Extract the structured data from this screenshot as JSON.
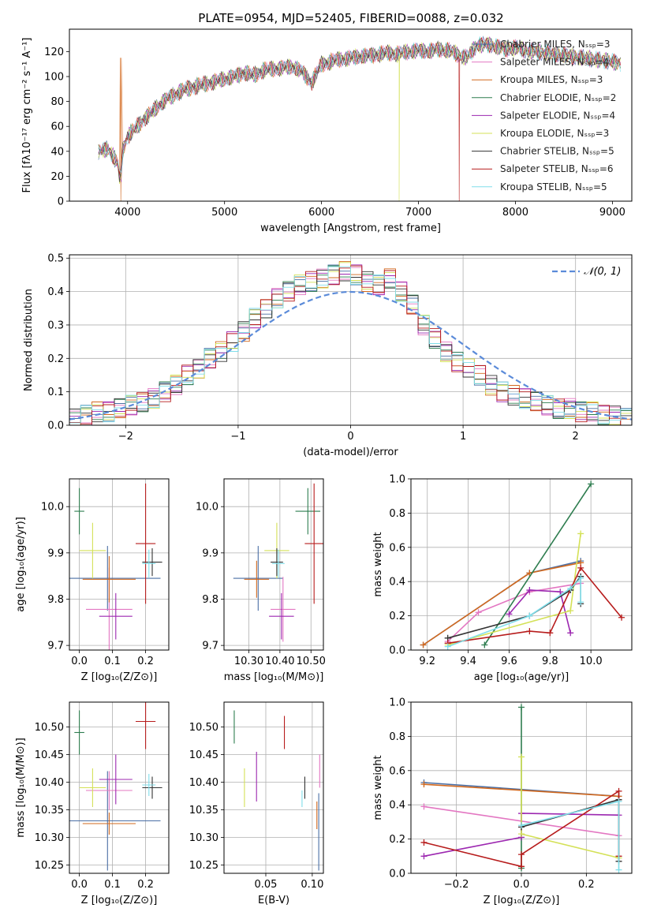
{
  "figure": {
    "title": "PLATE=0954, MJD=52405, FIBERID=0088, z=0.032"
  },
  "legend": [
    {
      "label": "Chabrier MILES, Nₛₛₚ=3",
      "color": "#4a6fa5"
    },
    {
      "label": "Salpeter MILES, Nₛₛₚ=4",
      "color": "#e377c2"
    },
    {
      "label": "Kroupa MILES, Nₛₛₚ=3",
      "color": "#d2691e"
    },
    {
      "label": "Chabrier ELODIE, Nₛₛₚ=2",
      "color": "#2e7d4f"
    },
    {
      "label": "Salpeter ELODIE, Nₛₛₚ=4",
      "color": "#9c27b0"
    },
    {
      "label": "Kroupa ELODIE, Nₛₛₚ=3",
      "color": "#d4e157"
    },
    {
      "label": "Chabrier STELIB, Nₛₛₚ=5",
      "color": "#333333"
    },
    {
      "label": "Salpeter STELIB, Nₛₛₚ=6",
      "color": "#b71c1c"
    },
    {
      "label": "Kroupa STELIB, Nₛₛₚ=5",
      "color": "#80deea"
    }
  ],
  "chart_data": [
    {
      "type": "line",
      "title": "PLATE=0954, MJD=52405, FIBERID=0088, z=0.032",
      "xlabel": "wavelength [Angstrom, rest frame]",
      "ylabel": "Flux [fλ10⁻¹⁷ erg cm⁻² s⁻¹ A⁻¹]",
      "xlim": [
        3400,
        9200
      ],
      "ylim": [
        0,
        138
      ],
      "xticks": [
        4000,
        5000,
        6000,
        7000,
        8000,
        9000
      ],
      "yticks": [
        0,
        20,
        40,
        60,
        80,
        100,
        120
      ],
      "grid": false,
      "legend_position": "top-right",
      "x": [
        3700,
        3800,
        3900,
        4000,
        4100,
        4200,
        4300,
        4400,
        4500,
        4600,
        4700,
        4800,
        4900,
        5000,
        5100,
        5200,
        5300,
        5400,
        5500,
        5600,
        5700,
        5800,
        5900,
        6000,
        6100,
        6200,
        6300,
        6400,
        6500,
        6600,
        6700,
        6800,
        6900,
        7000,
        7100,
        7200,
        7300,
        7400,
        7500,
        7600,
        7700,
        7800,
        7900,
        8000,
        8100,
        8200,
        8300,
        8400,
        8500,
        8600,
        8700,
        8800,
        8900,
        9000,
        9100
      ],
      "flux": [
        40,
        42,
        30,
        52,
        60,
        68,
        75,
        82,
        86,
        90,
        92,
        94,
        96,
        98,
        100,
        103,
        101,
        105,
        106,
        107,
        108,
        104,
        95,
        110,
        112,
        114,
        115,
        116,
        117,
        118,
        119,
        118,
        120,
        121,
        120,
        122,
        121,
        118,
        115,
        125,
        126,
        124,
        122,
        123,
        121,
        120,
        119,
        118,
        117,
        116,
        115,
        114,
        113,
        112,
        110
      ],
      "drops": [
        {
          "series": "Kroupa MILES, Nₛₛₚ=3",
          "x": 3930,
          "y": 0
        },
        {
          "series": "Kroupa ELODIE, Nₛₛₚ=3",
          "x": 6800,
          "y": 0
        },
        {
          "series": "Salpeter STELIB, Nₛₛₚ=6",
          "x": 7420,
          "y": 0
        }
      ]
    },
    {
      "type": "line",
      "xlabel": "(data-model)/error",
      "ylabel": "Normed distribution",
      "xlim": [
        -2.5,
        2.5
      ],
      "ylim": [
        0,
        0.51
      ],
      "xticks": [
        -2,
        -1,
        0,
        1,
        2
      ],
      "yticks": [
        0.0,
        0.1,
        0.2,
        0.3,
        0.4,
        0.5
      ],
      "grid": true,
      "legend": [
        {
          "label": "𝒩(0, 1)",
          "color": "#5b8bd9",
          "style": "dashed"
        }
      ],
      "legend_position": "top-right",
      "bin_edges": [
        -2.5,
        -2.4,
        -2.3,
        -2.2,
        -2.1,
        -2.0,
        -1.9,
        -1.8,
        -1.7,
        -1.6,
        -1.5,
        -1.4,
        -1.3,
        -1.2,
        -1.1,
        -1.0,
        -0.9,
        -0.8,
        -0.7,
        -0.6,
        -0.5,
        -0.4,
        -0.3,
        -0.2,
        -0.1,
        0.0,
        0.1,
        0.2,
        0.3,
        0.4,
        0.5,
        0.6,
        0.7,
        0.8,
        0.9,
        1.0,
        1.1,
        1.2,
        1.3,
        1.4,
        1.5,
        1.6,
        1.7,
        1.8,
        1.9,
        2.0,
        2.1,
        2.2,
        2.3,
        2.4,
        2.5
      ],
      "histogram": [
        0.02,
        0.03,
        0.04,
        0.04,
        0.05,
        0.06,
        0.07,
        0.08,
        0.1,
        0.12,
        0.15,
        0.17,
        0.2,
        0.22,
        0.25,
        0.28,
        0.32,
        0.35,
        0.38,
        0.4,
        0.42,
        0.43,
        0.44,
        0.45,
        0.46,
        0.45,
        0.43,
        0.42,
        0.44,
        0.4,
        0.36,
        0.3,
        0.26,
        0.22,
        0.19,
        0.17,
        0.15,
        0.12,
        0.1,
        0.09,
        0.08,
        0.07,
        0.06,
        0.05,
        0.05,
        0.04,
        0.04,
        0.03,
        0.03,
        0.02
      ],
      "normal_curve": {
        "mean": 0,
        "sd": 1
      }
    },
    {
      "type": "scatter",
      "xlabel": "Z [log₁₀(Z/Z⊙)]",
      "ylabel": "age  [log₁₀(age/yr)]",
      "xlim": [
        -0.03,
        0.27
      ],
      "ylim": [
        9.69,
        10.06
      ],
      "xticks": [
        0.0,
        0.1,
        0.2
      ],
      "yticks": [
        9.7,
        9.8,
        9.9,
        10.0
      ],
      "grid": true,
      "points": [
        {
          "series": "Chabrier MILES, Nₛₛₚ=3",
          "x": 0.085,
          "y": 9.845,
          "xerr": 0.16,
          "yerr": 0.07
        },
        {
          "series": "Salpeter MILES, Nₛₛₚ=4",
          "x": 0.09,
          "y": 9.778,
          "xerr": 0.07,
          "yerr": 0.09
        },
        {
          "series": "Kroupa MILES, Nₛₛₚ=3",
          "x": 0.09,
          "y": 9.843,
          "xerr": 0.08,
          "yerr": 0.05
        },
        {
          "series": "Chabrier ELODIE, Nₛₛₚ=2",
          "x": 0.0,
          "y": 9.99,
          "xerr": 0.015,
          "yerr": 0.05
        },
        {
          "series": "Salpeter ELODIE, Nₛₛₚ=4",
          "x": 0.11,
          "y": 9.763,
          "xerr": 0.05,
          "yerr": 0.05
        },
        {
          "series": "Kroupa ELODIE, Nₛₛₚ=3",
          "x": 0.04,
          "y": 9.905,
          "xerr": 0.04,
          "yerr": 0.06
        },
        {
          "series": "Chabrier STELIB, Nₛₛₚ=5",
          "x": 0.22,
          "y": 9.88,
          "xerr": 0.03,
          "yerr": 0.03
        },
        {
          "series": "Salpeter STELIB, Nₛₛₚ=6",
          "x": 0.2,
          "y": 9.92,
          "xerr": 0.03,
          "yerr": 0.13
        },
        {
          "series": "Kroupa STELIB, Nₛₛₚ=5",
          "x": 0.21,
          "y": 9.877,
          "xerr": 0.02,
          "yerr": 0.03
        }
      ]
    },
    {
      "type": "scatter",
      "xlabel": "mass [log₁₀(M/M⊙)]",
      "ylabel": "",
      "xlim": [
        10.22,
        10.54
      ],
      "ylim": [
        9.69,
        10.06
      ],
      "xticks": [
        10.3,
        10.4,
        10.5
      ],
      "yticks": [
        9.7,
        9.8,
        9.9,
        10.0
      ],
      "grid": true,
      "points": [
        {
          "series": "Chabrier MILES, Nₛₛₚ=3",
          "x": 10.33,
          "y": 9.845,
          "xerr": 0.08,
          "yerr": 0.07
        },
        {
          "series": "Salpeter MILES, Nₛₛₚ=4",
          "x": 10.41,
          "y": 9.778,
          "xerr": 0.04,
          "yerr": 0.07
        },
        {
          "series": "Kroupa MILES, Nₛₛₚ=3",
          "x": 10.325,
          "y": 9.843,
          "xerr": 0.04,
          "yerr": 0.04
        },
        {
          "series": "Chabrier ELODIE, Nₛₛₚ=2",
          "x": 10.49,
          "y": 9.99,
          "xerr": 0.04,
          "yerr": 0.05
        },
        {
          "series": "Salpeter ELODIE, Nₛₛₚ=4",
          "x": 10.405,
          "y": 9.763,
          "xerr": 0.04,
          "yerr": 0.05
        },
        {
          "series": "Kroupa ELODIE, Nₛₛₚ=3",
          "x": 10.39,
          "y": 9.905,
          "xerr": 0.04,
          "yerr": 0.06
        },
        {
          "series": "Chabrier STELIB, Nₛₛₚ=5",
          "x": 10.39,
          "y": 9.88,
          "xerr": 0.02,
          "yerr": 0.03
        },
        {
          "series": "Salpeter STELIB, Nₛₛₚ=6",
          "x": 10.51,
          "y": 9.92,
          "xerr": 0.03,
          "yerr": 0.13
        },
        {
          "series": "Kroupa STELIB, Nₛₛₚ=5",
          "x": 10.395,
          "y": 9.877,
          "xerr": 0.02,
          "yerr": 0.03
        }
      ]
    },
    {
      "type": "line",
      "xlabel": "age  [log₁₀(age/yr)]",
      "ylabel": "mass weight",
      "xlim": [
        9.12,
        10.2
      ],
      "ylim": [
        0.0,
        1.0
      ],
      "xticks": [
        9.2,
        9.4,
        9.6,
        9.8,
        10.0
      ],
      "yticks": [
        0.0,
        0.2,
        0.4,
        0.6,
        0.8,
        1.0
      ],
      "grid": true,
      "series": [
        {
          "name": "Chabrier MILES, Nₛₛₚ=3",
          "x": [
            9.18,
            9.7,
            9.95
          ],
          "y": [
            0.03,
            0.45,
            0.52
          ]
        },
        {
          "name": "Salpeter MILES, Nₛₛₚ=4",
          "x": [
            9.3,
            9.45,
            9.7,
            9.95
          ],
          "y": [
            0.05,
            0.22,
            0.34,
            0.39
          ]
        },
        {
          "name": "Kroupa MILES, Nₛₛₚ=3",
          "x": [
            9.18,
            9.7,
            9.95
          ],
          "y": [
            0.03,
            0.45,
            0.51
          ]
        },
        {
          "name": "Chabrier ELODIE, Nₛₛₚ=2",
          "x": [
            9.48,
            10.0
          ],
          "y": [
            0.03,
            0.97
          ]
        },
        {
          "name": "Salpeter ELODIE, Nₛₛₚ=4",
          "x": [
            9.6,
            9.7,
            9.85,
            9.9
          ],
          "y": [
            0.21,
            0.35,
            0.34,
            0.1
          ]
        },
        {
          "name": "Kroupa ELODIE, Nₛₛₚ=3",
          "x": [
            9.3,
            9.9,
            9.95
          ],
          "y": [
            0.03,
            0.23,
            0.68
          ]
        },
        {
          "name": "Chabrier STELIB, Nₛₛₚ=5",
          "x": [
            9.3,
            9.7,
            9.9,
            9.95,
            9.95
          ],
          "y": [
            0.07,
            0.2,
            0.35,
            0.43,
            0.27
          ]
        },
        {
          "name": "Salpeter STELIB, Nₛₛₚ=6",
          "x": [
            9.3,
            9.7,
            9.8,
            9.95,
            10.15
          ],
          "y": [
            0.04,
            0.11,
            0.1,
            0.48,
            0.19
          ]
        },
        {
          "name": "Kroupa STELIB, Nₛₛₚ=5",
          "x": [
            9.3,
            9.7,
            9.9,
            9.95,
            9.95
          ],
          "y": [
            0.02,
            0.2,
            0.36,
            0.42,
            0.28
          ]
        }
      ]
    },
    {
      "type": "scatter",
      "xlabel": "Z [log₁₀(Z/Z⊙)]",
      "ylabel": "mass [log₁₀(M/M⊙)]",
      "xlim": [
        -0.03,
        0.27
      ],
      "ylim": [
        10.235,
        10.545
      ],
      "xticks": [
        0.0,
        0.1,
        0.2
      ],
      "yticks": [
        10.25,
        10.3,
        10.35,
        10.4,
        10.45,
        10.5
      ],
      "grid": true,
      "points": [
        {
          "series": "Chabrier MILES, Nₛₛₚ=3",
          "x": 0.085,
          "y": 10.33,
          "xerr": 0.16,
          "yerr": 0.09
        },
        {
          "series": "Salpeter MILES, Nₛₛₚ=4",
          "x": 0.09,
          "y": 10.385,
          "xerr": 0.07,
          "yerr": 0.035
        },
        {
          "series": "Kroupa MILES, Nₛₛₚ=3",
          "x": 0.09,
          "y": 10.325,
          "xerr": 0.08,
          "yerr": 0.02
        },
        {
          "series": "Chabrier ELODIE, Nₛₛₚ=2",
          "x": 0.0,
          "y": 10.49,
          "xerr": 0.015,
          "yerr": 0.04
        },
        {
          "series": "Salpeter ELODIE, Nₛₛₚ=4",
          "x": 0.11,
          "y": 10.405,
          "xerr": 0.05,
          "yerr": 0.045
        },
        {
          "series": "Kroupa ELODIE, Nₛₛₚ=3",
          "x": 0.04,
          "y": 10.39,
          "xerr": 0.04,
          "yerr": 0.035
        },
        {
          "series": "Chabrier STELIB, Nₛₛₚ=5",
          "x": 0.22,
          "y": 10.39,
          "xerr": 0.03,
          "yerr": 0.02
        },
        {
          "series": "Salpeter STELIB, Nₛₛₚ=6",
          "x": 0.2,
          "y": 10.51,
          "xerr": 0.03,
          "yerr": 0.05
        },
        {
          "series": "Kroupa STELIB, Nₛₛₚ=5",
          "x": 0.21,
          "y": 10.395,
          "xerr": 0.02,
          "yerr": 0.02
        }
      ]
    },
    {
      "type": "scatter",
      "xlabel": "E(B-V)",
      "ylabel": "",
      "xlim": [
        0.005,
        0.112
      ],
      "ylim": [
        10.235,
        10.545
      ],
      "xticks": [
        0.05,
        0.1
      ],
      "yticks": [
        10.25,
        10.3,
        10.35,
        10.4,
        10.45,
        10.5
      ],
      "grid": true,
      "points": [
        {
          "series": "Chabrier MILES, Nₛₛₚ=3",
          "x": 0.107,
          "y": 10.31,
          "yerr": 0.07
        },
        {
          "series": "Salpeter MILES, Nₛₛₚ=4",
          "x": 0.108,
          "y": 10.42,
          "yerr": 0.03
        },
        {
          "series": "Kroupa MILES, Nₛₛₚ=3",
          "x": 0.105,
          "y": 10.34,
          "yerr": 0.025
        },
        {
          "series": "Chabrier ELODIE, Nₛₛₚ=2",
          "x": 0.016,
          "y": 10.5,
          "yerr": 0.03
        },
        {
          "series": "Salpeter ELODIE, Nₛₛₚ=4",
          "x": 0.04,
          "y": 10.41,
          "yerr": 0.045
        },
        {
          "series": "Kroupa ELODIE, Nₛₛₚ=3",
          "x": 0.027,
          "y": 10.39,
          "yerr": 0.035
        },
        {
          "series": "Chabrier STELIB, Nₛₛₚ=5",
          "x": 0.092,
          "y": 10.39,
          "yerr": 0.02
        },
        {
          "series": "Salpeter STELIB, Nₛₛₚ=6",
          "x": 0.07,
          "y": 10.49,
          "yerr": 0.03
        },
        {
          "series": "Kroupa STELIB, Nₛₛₚ=5",
          "x": 0.089,
          "y": 10.37,
          "yerr": 0.015
        }
      ]
    },
    {
      "type": "line",
      "xlabel": "Z [log₁₀(Z/Z⊙)]",
      "ylabel": "mass weight",
      "xlim": [
        -0.34,
        0.34
      ],
      "ylim": [
        0.0,
        1.0
      ],
      "xticks": [
        -0.2,
        0.0,
        0.2
      ],
      "yticks": [
        0.0,
        0.2,
        0.4,
        0.6,
        0.8,
        1.0
      ],
      "grid": true,
      "series": [
        {
          "name": "Chabrier MILES, Nₛₛₚ=3",
          "x": [
            -0.3,
            0.3
          ],
          "y": [
            0.53,
            0.45
          ]
        },
        {
          "name": "Salpeter MILES, Nₛₛₚ=4",
          "x": [
            -0.3,
            0.3
          ],
          "y": [
            0.39,
            0.22
          ]
        },
        {
          "name": "Kroupa MILES, Nₛₛₚ=3",
          "x": [
            -0.3,
            0.3
          ],
          "y": [
            0.52,
            0.45
          ]
        },
        {
          "name": "Chabrier ELODIE, Nₛₛₚ=2",
          "x": [
            0.0,
            0.0
          ],
          "y": [
            0.03,
            0.97
          ]
        },
        {
          "name": "Salpeter ELODIE, Nₛₛₚ=4",
          "x": [
            -0.3,
            0.0,
            0.0,
            0.3
          ],
          "y": [
            0.1,
            0.21,
            0.35,
            0.34
          ]
        },
        {
          "name": "Kroupa ELODIE, Nₛₛₚ=3",
          "x": [
            0.0,
            0.0,
            0.3
          ],
          "y": [
            0.68,
            0.23,
            0.09
          ]
        },
        {
          "name": "Chabrier STELIB, Nₛₛₚ=5",
          "x": [
            0.0,
            0.3,
            0.3
          ],
          "y": [
            0.27,
            0.43,
            0.07
          ]
        },
        {
          "name": "Salpeter STELIB, Nₛₛₚ=6",
          "x": [
            -0.3,
            0.0,
            0.0,
            0.3,
            0.3
          ],
          "y": [
            0.18,
            0.04,
            0.11,
            0.48,
            0.1
          ]
        },
        {
          "name": "Kroupa STELIB, Nₛₛₚ=5",
          "x": [
            0.0,
            0.3,
            0.3
          ],
          "y": [
            0.28,
            0.42,
            0.02
          ]
        }
      ]
    }
  ]
}
